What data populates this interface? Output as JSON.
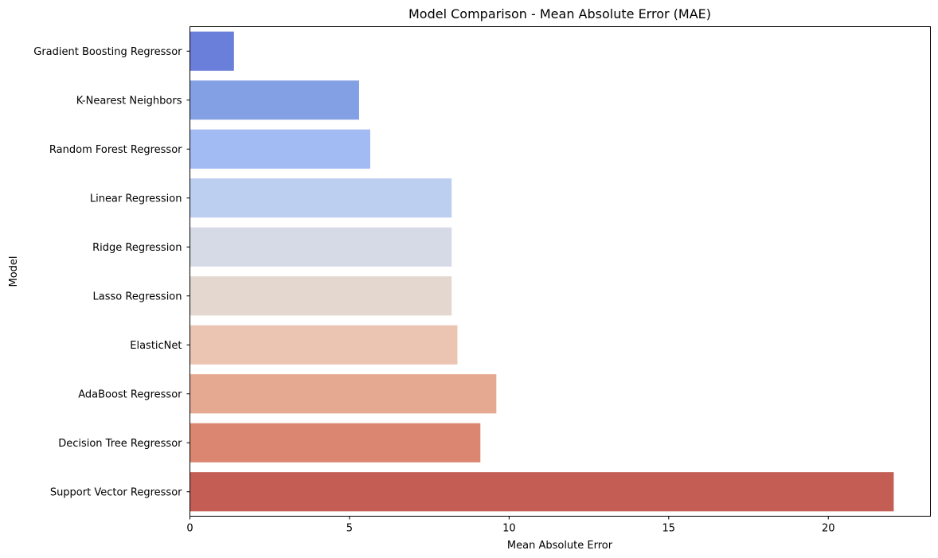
{
  "chart_data": {
    "type": "bar",
    "orientation": "horizontal",
    "title": "Model Comparison - Mean Absolute Error (MAE)",
    "xlabel": "Mean Absolute Error",
    "ylabel": "Model",
    "xlim": [
      0,
      23.2
    ],
    "xticks": [
      0,
      5,
      10,
      15,
      20
    ],
    "grid": false,
    "categories": [
      "Gradient Boosting Regressor",
      "K-Nearest Neighbors",
      "Random Forest Regressor",
      "Linear Regression",
      "Ridge Regression",
      "Lasso Regression",
      "ElasticNet",
      "AdaBoost Regressor",
      "Decision Tree Regressor",
      "Support Vector Regressor"
    ],
    "values": [
      1.38,
      5.3,
      5.65,
      8.2,
      8.2,
      8.2,
      8.38,
      9.6,
      9.1,
      22.05
    ],
    "colors": [
      "#6a7fda",
      "#84a0e5",
      "#a2bbf3",
      "#bdcff1",
      "#d5dae6",
      "#e4d7cf",
      "#ecc4b2",
      "#e5a891",
      "#da8670",
      "#c45e55"
    ]
  }
}
